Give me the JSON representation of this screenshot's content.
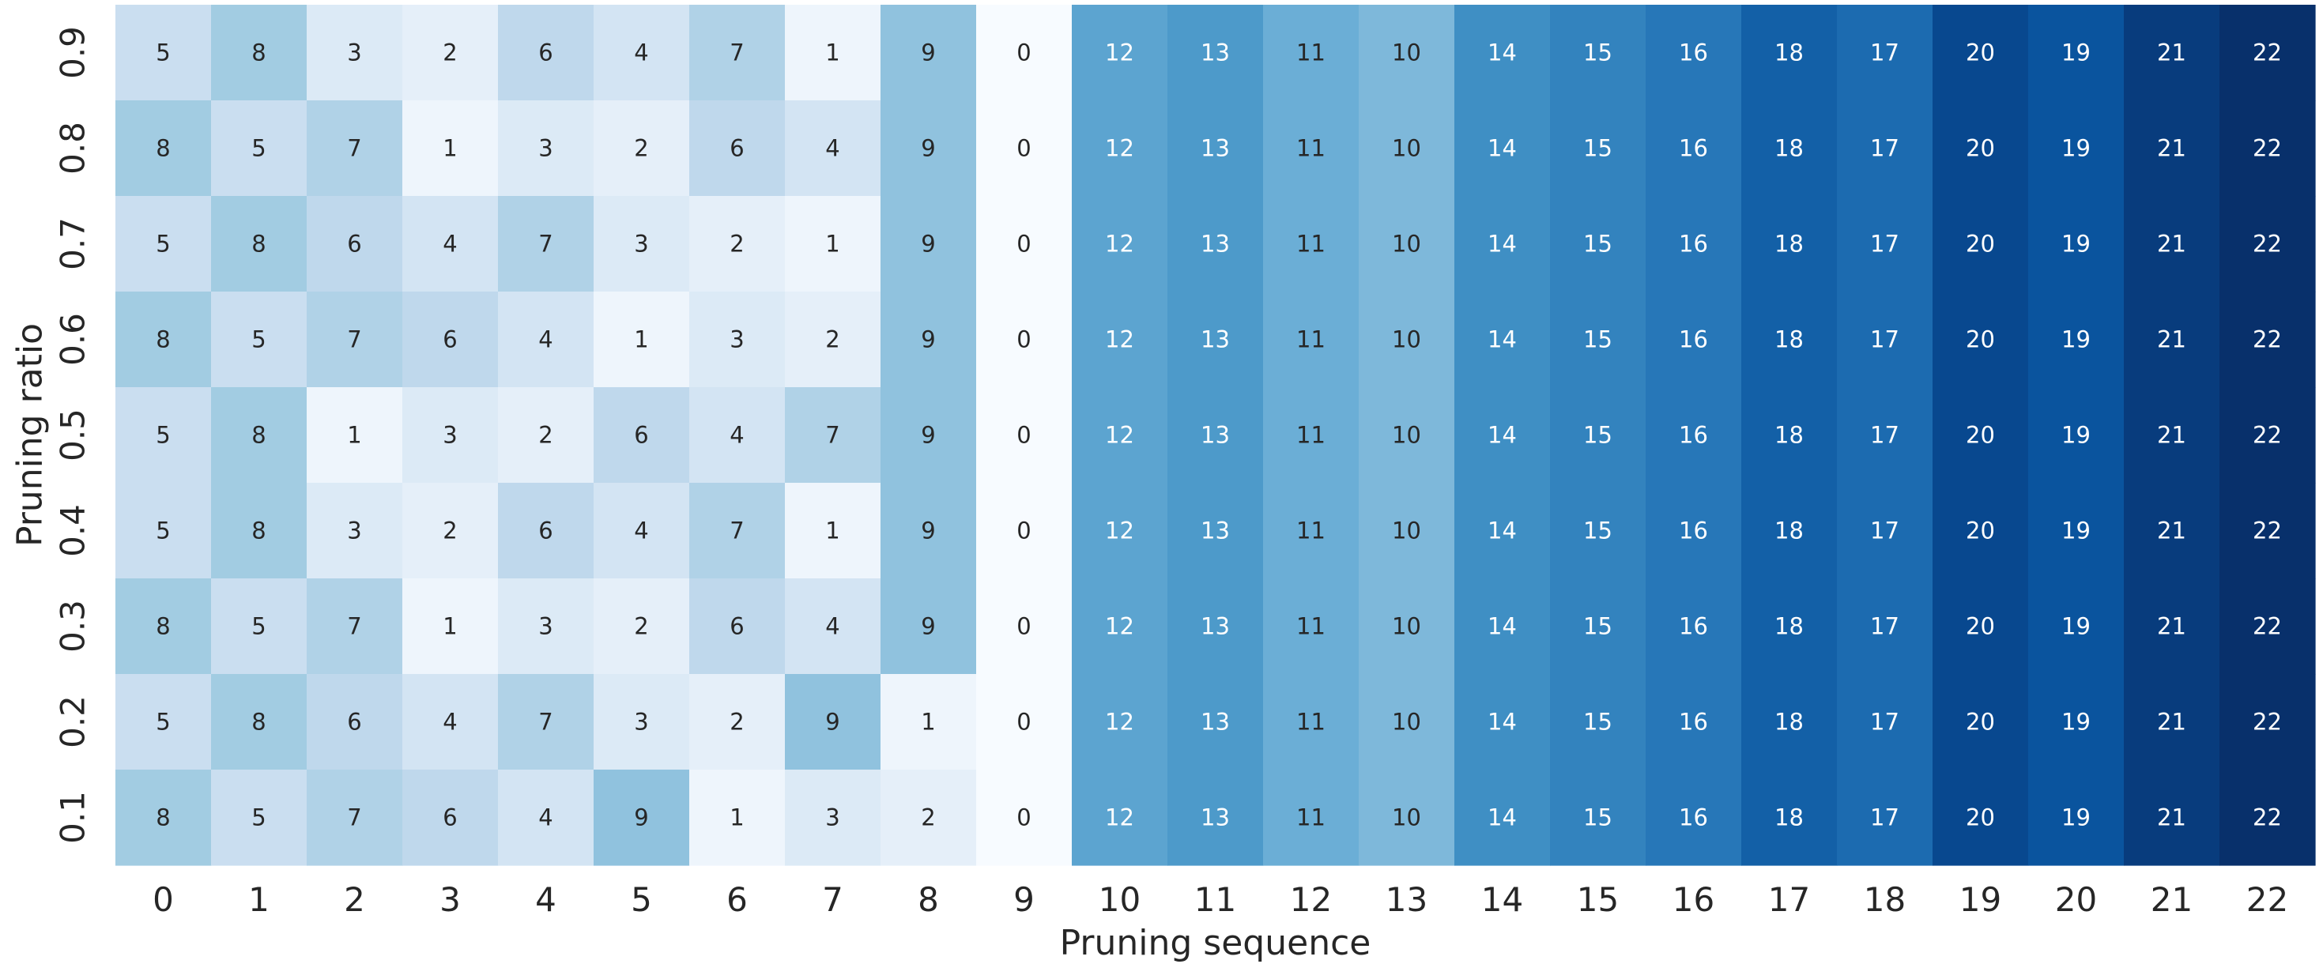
{
  "chart_data": {
    "type": "heatmap",
    "title": "",
    "xlabel": "Pruning sequence",
    "ylabel": "Pruning ratio",
    "x_categories": [
      "0",
      "1",
      "2",
      "3",
      "4",
      "5",
      "6",
      "7",
      "8",
      "9",
      "10",
      "11",
      "12",
      "13",
      "14",
      "15",
      "16",
      "17",
      "18",
      "19",
      "20",
      "21",
      "22"
    ],
    "y_categories": [
      "0.9",
      "0.8",
      "0.7",
      "0.6",
      "0.5",
      "0.4",
      "0.3",
      "0.2",
      "0.1"
    ],
    "values": [
      [
        5,
        8,
        3,
        2,
        6,
        4,
        7,
        1,
        9,
        0,
        12,
        13,
        11,
        10,
        14,
        15,
        16,
        18,
        17,
        20,
        19,
        21,
        22
      ],
      [
        8,
        5,
        7,
        1,
        3,
        2,
        6,
        4,
        9,
        0,
        12,
        13,
        11,
        10,
        14,
        15,
        16,
        18,
        17,
        20,
        19,
        21,
        22
      ],
      [
        5,
        8,
        6,
        4,
        7,
        3,
        2,
        1,
        9,
        0,
        12,
        13,
        11,
        10,
        14,
        15,
        16,
        18,
        17,
        20,
        19,
        21,
        22
      ],
      [
        8,
        5,
        7,
        6,
        4,
        1,
        3,
        2,
        9,
        0,
        12,
        13,
        11,
        10,
        14,
        15,
        16,
        18,
        17,
        20,
        19,
        21,
        22
      ],
      [
        5,
        8,
        1,
        3,
        2,
        6,
        4,
        7,
        9,
        0,
        12,
        13,
        11,
        10,
        14,
        15,
        16,
        18,
        17,
        20,
        19,
        21,
        22
      ],
      [
        5,
        8,
        3,
        2,
        6,
        4,
        7,
        1,
        9,
        0,
        12,
        13,
        11,
        10,
        14,
        15,
        16,
        18,
        17,
        20,
        19,
        21,
        22
      ],
      [
        8,
        5,
        7,
        1,
        3,
        2,
        6,
        4,
        9,
        0,
        12,
        13,
        11,
        10,
        14,
        15,
        16,
        18,
        17,
        20,
        19,
        21,
        22
      ],
      [
        5,
        8,
        6,
        4,
        7,
        3,
        2,
        9,
        1,
        0,
        12,
        13,
        11,
        10,
        14,
        15,
        16,
        18,
        17,
        20,
        19,
        21,
        22
      ],
      [
        8,
        5,
        7,
        6,
        4,
        9,
        1,
        3,
        2,
        0,
        12,
        13,
        11,
        10,
        14,
        15,
        16,
        18,
        17,
        20,
        19,
        21,
        22
      ]
    ],
    "value_range": [
      0,
      22
    ],
    "colormap": "Blues",
    "annotations": true,
    "colorbar": false,
    "grid": false
  }
}
